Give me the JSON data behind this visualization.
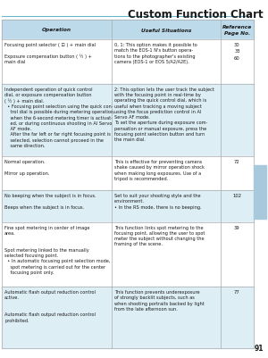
{
  "title": "Custom Function Chart",
  "title_color": "#1a1a1a",
  "title_fontsize": 8.5,
  "page_number": "91",
  "bg_color": "#ffffff",
  "header_bg": "#bddaeb",
  "header_text_color": "#1a1a1a",
  "right_tab_color": "#a8c8dc",
  "col_headers": [
    "Operation",
    "Useful Situations",
    "Reference\nPage No."
  ],
  "rows": [
    {
      "op": "Focusing point selector ( ⊡ ) + main dial\n\nExposure compensation button ( ½ ) +\nmain dial",
      "useful": "0, 1: This option makes it possible to\nmatch the EOS-1 N's button opera-\ntions to the photographer's existing\ncamera (EOS-1 or EOS 5/A2/A2E).",
      "ref": "30\n33\n60",
      "row_bg": "#ffffff"
    },
    {
      "op": "Independent operation of quick control\ndial, or exposure compensation button\n( ½ ) + main dial.\n  • Focusing point selection using the quick con-\n    trol dial is possible during metering operation,\n    when the 6-second metering timer is activat-\n    ed, or during continuous shooting in AI Servo\n    AF mode.\n    After the far left or far right focusing point is\n    selected, selection cannot proceed in the\n    same direction.",
      "useful": "2: This option lets the user track the subject\nwith the focusing point in real-time by\noperating the quick control dial, which is\nuseful when tracking a moving subject\nusing the focus prediction control in AI\nServo AF mode.\nTo set the aperture during exposure com-\npensation or manual exposure, press the\nfocusing point selection button and turn\nthe main dial.",
      "ref": "",
      "row_bg": "#ddeef5"
    },
    {
      "op": "Normal operation.\n\nMirror up operation.",
      "useful": "This is effective for preventing camera\nshake caused by mirror operation shock\nwhen making long exposures. Use of a\ntripod is recommended.",
      "ref": "72",
      "row_bg": "#ffffff"
    },
    {
      "op": "No beeping when the subject is in focus.\n\nBeeps when the subject is in focus.",
      "useful": "Set to suit your shooting style and the\nenvironment.\n• In the RS mode, there is no beeping.",
      "ref": "102",
      "row_bg": "#ddeef5"
    },
    {
      "op": "Fine spot metering in center of image\narea.\n\n\nSpot metering linked to the manually\nselected focusing point.\n  • In automatic focusing point selection mode,\n    spot metering is carried out for the center\n    focusing point only.",
      "useful": "This function links spot metering to the\nfocusing point, allowing the user to spot\nmeter the subject without changing the\nframing of the scene.",
      "ref": "39",
      "row_bg": "#ffffff"
    },
    {
      "op": "Automatic flash output reduction control\nactive.\n\n\nAutomatic flash output reduction control\nprohibited.",
      "useful": "This function prevents underexposure\nof strongly backlit subjects, such as\nwhen shooting portraits backed by light\nfrom the late afternoon sun.",
      "ref": "77",
      "row_bg": "#ddeef5"
    }
  ]
}
